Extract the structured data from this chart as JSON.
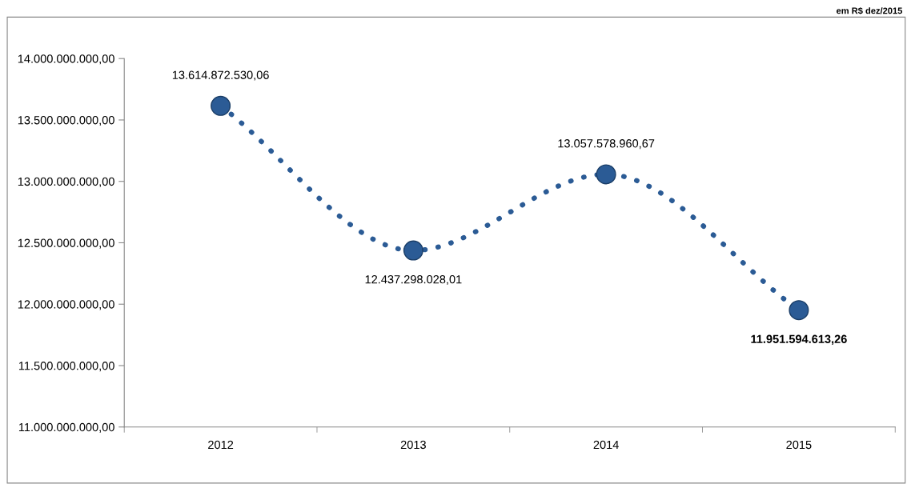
{
  "chart_data": {
    "type": "line",
    "categories": [
      "2012",
      "2013",
      "2014",
      "2015"
    ],
    "series": [
      {
        "color": "#2b5b95",
        "values": [
          13614872530.06,
          12437298028.01,
          13057578960.67,
          11951594613.26
        ]
      }
    ],
    "value_labels": [
      "13.614.872.530,06",
      "12.437.298.028,01",
      "13.057.578.960,67",
      "11.951.594.613,26"
    ],
    "ylim": [
      11000000000,
      14000000000
    ],
    "yticks": [
      {
        "value": 11000000000,
        "label": "11.000.000.000,00"
      },
      {
        "value": 11500000000,
        "label": "11.500.000.000,00"
      },
      {
        "value": 12000000000,
        "label": "12.000.000.000,00"
      },
      {
        "value": 12500000000,
        "label": "12.500.000.000,00"
      },
      {
        "value": 13000000000,
        "label": "13.000.000.000,00"
      },
      {
        "value": 13500000000,
        "label": "13.500.000.000,00"
      },
      {
        "value": 14000000000,
        "label": "14.000.000.000,00"
      }
    ],
    "marker": "circle",
    "line_style": "dotted",
    "grid": false,
    "legend": false,
    "annotations": [
      "em R$ dez/2015"
    ]
  }
}
